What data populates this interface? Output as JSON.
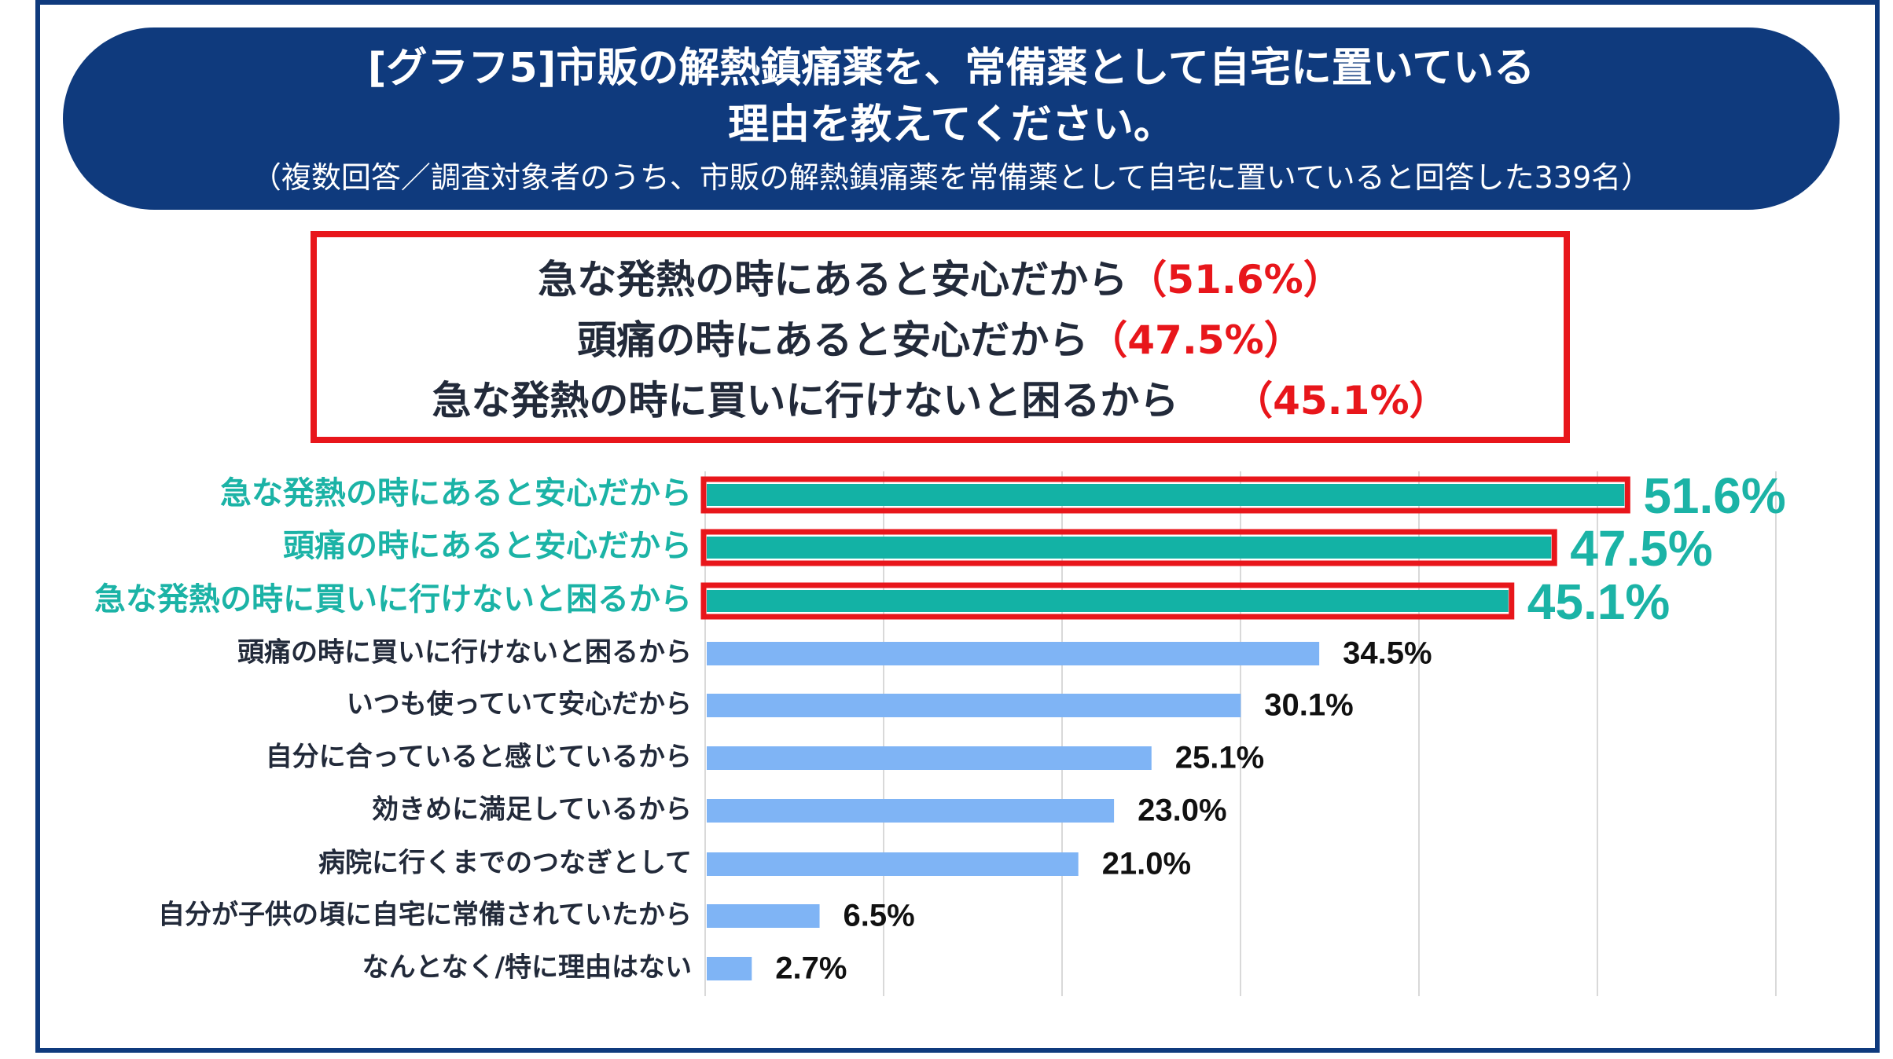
{
  "header": {
    "title_line1": "[グラフ5]市販の解熱鎮痛薬を、常備薬として自宅に置いている",
    "title_line2": "理由を教えてください。",
    "subtitle": "（複数回答／調査対象者のうち、市販の解熱鎮痛薬を常備薬として自宅に置いていると回答した339名）"
  },
  "summary": [
    {
      "label": "急な発熱の時にあると安心だから",
      "value": "（51.6%）"
    },
    {
      "label": "頭痛の時にあると安心だから",
      "value": "（47.5%）"
    },
    {
      "label": "急な発熱の時に買いに行けないと困るから",
      "value": "（45.1%）"
    }
  ],
  "colors": {
    "navy": "#0f3a7d",
    "highlight_red": "#e8161b",
    "teal_bar": "#13b2a5",
    "teal_text": "#1bb3a6",
    "light_blue_bar": "#7fb4f5",
    "grid": "#d9d9d9",
    "dark_text": "#222a3a"
  },
  "chart_data": {
    "type": "bar",
    "orientation": "horizontal",
    "categories": [
      "急な発熱の時にあると安心だから",
      "頭痛の時にあると安心だから",
      "急な発熱の時に買いに行けないと困るから",
      "頭痛の時に買いに行けないと困るから",
      "いつも使っていて安心だから",
      "自分に合っていると感じているから",
      "効きめに満足しているから",
      "病院に行くまでのつなぎとして",
      "自分が子供の頃に自宅に常備されていたから",
      "なんとなく/特に理由はない"
    ],
    "values": [
      51.6,
      47.5,
      45.1,
      34.5,
      30.1,
      25.1,
      23.0,
      21.0,
      6.5,
      2.7
    ],
    "value_labels": [
      "51.6%",
      "47.5%",
      "45.1%",
      "34.5%",
      "30.1%",
      "25.1%",
      "23.0%",
      "21.0%",
      "6.5%",
      "2.7%"
    ],
    "highlighted": [
      true,
      true,
      true,
      false,
      false,
      false,
      false,
      false,
      false,
      false
    ],
    "xlim": [
      0,
      60
    ],
    "grid_step": 10,
    "grid": true
  }
}
